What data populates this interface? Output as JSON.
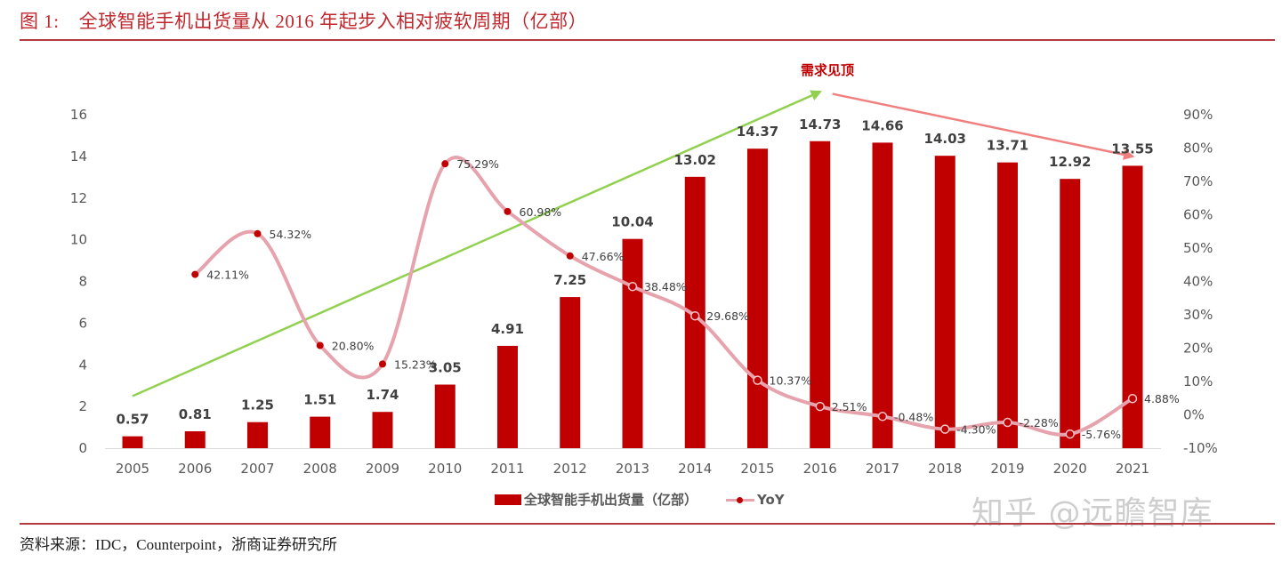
{
  "figure": {
    "number": "图 1:",
    "title": "全球智能手机出货量从 2016 年起步入相对疲软周期（亿部）",
    "source": "资料来源：IDC，Counterpoint，浙商证券研究所",
    "watermark": "知乎 @远瞻智库"
  },
  "chart_data": {
    "type": "bar",
    "title": "全球智能手机出货量从 2016 年起步入相对疲软周期（亿部）",
    "categories": [
      "2005",
      "2006",
      "2007",
      "2008",
      "2009",
      "2010",
      "2011",
      "2012",
      "2013",
      "2014",
      "2015",
      "2016",
      "2017",
      "2018",
      "2019",
      "2020",
      "2021"
    ],
    "series": [
      {
        "name": "全球智能手机出货量（亿部）",
        "type": "bar",
        "axis": "left",
        "color": "#c00000",
        "values": [
          0.57,
          0.81,
          1.25,
          1.51,
          1.74,
          3.05,
          4.91,
          7.25,
          10.04,
          13.02,
          14.37,
          14.73,
          14.66,
          14.03,
          13.71,
          12.92,
          13.55
        ],
        "labels": [
          "0.57",
          "0.81",
          "1.25",
          "1.51",
          "1.74",
          "3.05",
          "4.91",
          "7.25",
          "10.04",
          "13.02",
          "14.37",
          "14.73",
          "14.66",
          "14.03",
          "13.71",
          "12.92",
          "13.55"
        ]
      },
      {
        "name": "YoY",
        "type": "line",
        "axis": "right",
        "color": "#e6a3ad",
        "marker_color": "#c00000",
        "values": [
          null,
          42.11,
          54.32,
          20.8,
          15.23,
          75.29,
          60.98,
          47.66,
          38.48,
          29.68,
          10.37,
          2.51,
          -0.48,
          -4.3,
          -2.28,
          -5.76,
          4.88
        ],
        "labels": [
          null,
          "42.11%",
          "54.32%",
          "20.80%",
          "15.23%",
          "75.29%",
          "60.98%",
          "47.66%",
          "38.48%",
          "29.68%",
          "10.37%",
          "2.51%",
          "-0.48%",
          "-4.30%",
          "-2.28%",
          "-5.76%",
          "4.88%"
        ]
      }
    ],
    "y_left": {
      "range": [
        0,
        16
      ],
      "ticks": [
        "0",
        "2",
        "4",
        "6",
        "8",
        "10",
        "12",
        "14",
        "16"
      ],
      "tick_values": [
        0,
        2,
        4,
        6,
        8,
        10,
        12,
        14,
        16
      ]
    },
    "y_right": {
      "range": [
        -10,
        90
      ],
      "ticks": [
        "-10%",
        "0%",
        "10%",
        "20%",
        "30%",
        "40%",
        "50%",
        "60%",
        "70%",
        "80%",
        "90%"
      ],
      "tick_values": [
        -10,
        0,
        10,
        20,
        30,
        40,
        50,
        60,
        70,
        80,
        90
      ]
    },
    "xlabel": "",
    "ylabel": "",
    "grid": false,
    "legend": {
      "position": "bottom",
      "entries": [
        "全球智能手机出货量（亿部）",
        "YoY"
      ]
    },
    "annotations": [
      {
        "text": "需求见顶",
        "color": "#c00000"
      },
      {
        "type": "arrow",
        "name": "uptrend",
        "color": "#92d050",
        "from": {
          "category": "2005",
          "value": 2.5
        },
        "to": {
          "category": "2016",
          "value": 17.1
        }
      },
      {
        "type": "arrow",
        "name": "downtrend",
        "color": "#f08080",
        "from": {
          "category": "2016",
          "value": 17.0
        },
        "to": {
          "category": "2021",
          "value": 14.0
        }
      }
    ]
  }
}
